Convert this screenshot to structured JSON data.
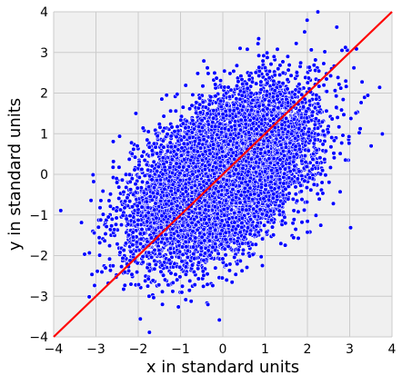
{
  "chart_data": {
    "type": "scatter",
    "title": "",
    "xlabel": "x in standard units",
    "ylabel": "y in standard units",
    "xlim": [
      -4,
      4
    ],
    "ylim": [
      -4,
      4
    ],
    "xticks": [
      -4,
      -3,
      -2,
      -1,
      0,
      1,
      2,
      3,
      4
    ],
    "yticks": [
      -4,
      -3,
      -2,
      -1,
      0,
      1,
      2,
      3,
      4
    ],
    "grid": true,
    "scatter_series": {
      "point_color": "#0000ff",
      "point_edge_color": "#ffffff",
      "n_points": 10000,
      "correlation": 0.5,
      "x_mean": 0,
      "x_sd": 1,
      "y_mean": 0,
      "y_sd": 1
    },
    "reference_line": {
      "color": "#ff0000",
      "slope": 1,
      "intercept": 0,
      "x_range": [
        -4,
        4
      ]
    }
  },
  "colors": {
    "plot_background": "#f0f0f0",
    "grid": "#cbcbcb",
    "page_background": "#ffffff"
  }
}
